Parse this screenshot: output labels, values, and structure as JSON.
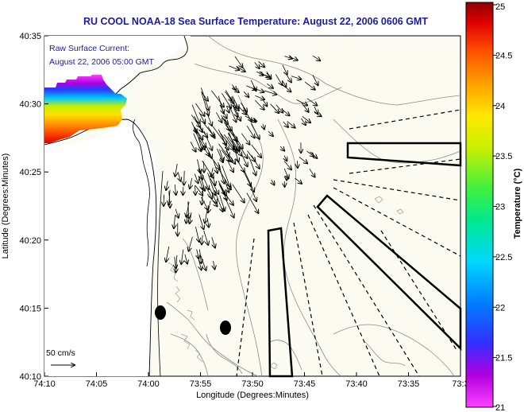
{
  "chart_data": {
    "type": "map",
    "title": "RU COOL  NOAA-18  Sea Surface Temperature:  August 22, 2006 0606 GMT",
    "xlabel": "Longitude (Degrees:Minutes)",
    "ylabel": "Latitude (Degrees:Minutes)",
    "x_ticks": [
      "74:10",
      "74:05",
      "74:00",
      "73:55",
      "73:50",
      "73:45",
      "73:40",
      "73:35",
      "73:3"
    ],
    "y_ticks": [
      "40:35",
      "40:30",
      "40:25",
      "40:20",
      "40:15",
      "40:10"
    ],
    "x_range_deg": [
      -74.1667,
      -73.5
    ],
    "y_range_deg": [
      40.1667,
      40.5833
    ],
    "grid": false,
    "annotations": [
      "Raw Surface Current:",
      "August 22, 2006 05:00 GMT"
    ],
    "scale_arrow_label": "50 cm/s",
    "colorbar": {
      "label": "Temperature (°C)",
      "ticks": [
        "25",
        "24.5",
        "24",
        "23.5",
        "23",
        "22.5",
        "22",
        "21.5",
        "21"
      ],
      "range": [
        21,
        25
      ]
    }
  }
}
